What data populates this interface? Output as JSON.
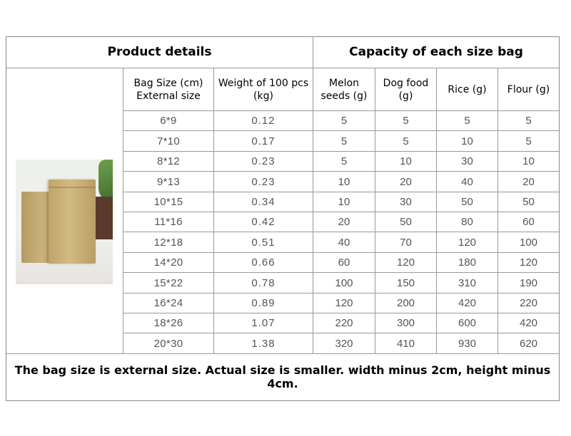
{
  "header": {
    "product_details": "Product details",
    "capacity": "Capacity of each size bag"
  },
  "columns": {
    "size_line1": "Bag Size (cm)",
    "size_line2": "External size",
    "weight_line1": "Weight of 100 pcs",
    "weight_line2": "(kg)",
    "melon_line1": "Melon",
    "melon_line2": "seeds (g)",
    "dog_line1": "Dog food",
    "dog_line2": "(g)",
    "rice": "Rice (g)",
    "flour": "Flour (g)"
  },
  "rows": [
    {
      "size": "6*9",
      "weight": "0.12",
      "melon": "5",
      "dog": "5",
      "rice": "5",
      "flour": "5"
    },
    {
      "size": "7*10",
      "weight": "0.17",
      "melon": "5",
      "dog": "5",
      "rice": "10",
      "flour": "5"
    },
    {
      "size": "8*12",
      "weight": "0.23",
      "melon": "5",
      "dog": "10",
      "rice": "30",
      "flour": "10"
    },
    {
      "size": "9*13",
      "weight": "0.23",
      "melon": "10",
      "dog": "20",
      "rice": "40",
      "flour": "20"
    },
    {
      "size": "10*15",
      "weight": "0.34",
      "melon": "10",
      "dog": "30",
      "rice": "50",
      "flour": "50"
    },
    {
      "size": "11*16",
      "weight": "0.42",
      "melon": "20",
      "dog": "50",
      "rice": "80",
      "flour": "60"
    },
    {
      "size": "12*18",
      "weight": "0.51",
      "melon": "40",
      "dog": "70",
      "rice": "120",
      "flour": "100"
    },
    {
      "size": "14*20",
      "weight": "0.66",
      "melon": "60",
      "dog": "120",
      "rice": "180",
      "flour": "120"
    },
    {
      "size": "15*22",
      "weight": "0.78",
      "melon": "100",
      "dog": "150",
      "rice": "310",
      "flour": "190"
    },
    {
      "size": "16*24",
      "weight": "0.89",
      "melon": "120",
      "dog": "200",
      "rice": "420",
      "flour": "220"
    },
    {
      "size": "18*26",
      "weight": "1.07",
      "melon": "220",
      "dog": "300",
      "rice": "600",
      "flour": "420"
    },
    {
      "size": "20*30",
      "weight": "1.38",
      "melon": "320",
      "dog": "410",
      "rice": "930",
      "flour": "620"
    }
  ],
  "footer": "The bag size is external size. Actual size is smaller. width minus 2cm, height minus 4cm."
}
